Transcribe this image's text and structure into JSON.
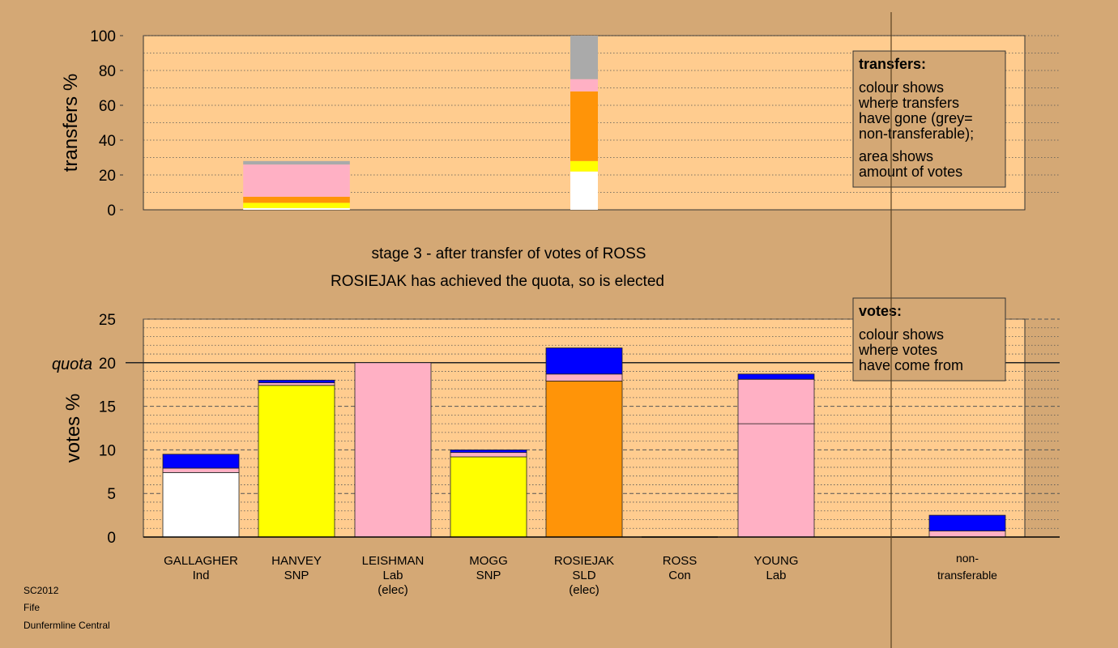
{
  "colors": {
    "background": "#D4A875",
    "plot_area": "#FFCC8F",
    "Ind": "#FFFFFF",
    "SNP": "#FFFF00",
    "Lab": "#FFB0C4",
    "SLD": "#FF9408",
    "Con": "#0000FF",
    "non_transferable": "#AAAAAA"
  },
  "footer": {
    "line1": "SC2012",
    "line2": "Fife",
    "line3": "Dunfermline Central"
  },
  "chart_data": [
    {
      "type": "bar",
      "role": "transfers",
      "ylabel": "transfers %",
      "ylim": [
        0,
        100
      ],
      "yticks": [
        0,
        20,
        40,
        60,
        80,
        100
      ],
      "categories": [
        "GALLAGHER",
        "HANVEY",
        "LEISHMAN",
        "MOGG",
        "ROSIEJAK",
        "ROSS",
        "YOUNG",
        "non-transferable"
      ],
      "bars": [
        {
          "category": "HANVEY",
          "segments": [
            {
              "party": "Ind",
              "value": 1
            },
            {
              "party": "SNP",
              "value": 3
            },
            {
              "party": "SLD",
              "value": 3.5
            },
            {
              "party": "Lab",
              "value": 18.5
            },
            {
              "party": "non_transferable",
              "value": 2
            }
          ]
        },
        {
          "category": "ROSIEJAK",
          "segments": [
            {
              "party": "Ind",
              "value": 22
            },
            {
              "party": "SNP",
              "value": 6
            },
            {
              "party": "SLD",
              "value": 40
            },
            {
              "party": "Lab",
              "value": 7
            },
            {
              "party": "non_transferable",
              "value": 25
            }
          ]
        }
      ],
      "legend": {
        "title": "transfers:",
        "line1": "colour shows",
        "line2": "where transfers",
        "line3": "have gone (grey=",
        "line4": "non-transferable);",
        "line5": "area shows",
        "line6": "amount of votes"
      }
    },
    {
      "type": "bar",
      "role": "votes",
      "title": "stage 3 - after transfer of votes of ROSS",
      "subtitle": "ROSIEJAK has achieved the quota, so is elected",
      "ylabel": "votes %",
      "ylim": [
        0,
        25
      ],
      "yticks": [
        0,
        5,
        10,
        15,
        20,
        25
      ],
      "quota": 20,
      "quota_label": "quota",
      "candidates": [
        {
          "name": "GALLAGHER",
          "party": "Ind",
          "status": "",
          "segments": [
            {
              "party": "Ind",
              "value": 7.4
            },
            {
              "party": "Lab",
              "value": 0.5
            },
            {
              "party": "Con",
              "value": 1.6
            }
          ]
        },
        {
          "name": "HANVEY",
          "party": "SNP",
          "status": "",
          "segments": [
            {
              "party": "SNP",
              "value": 17.4
            },
            {
              "party": "Lab",
              "value": 0.3
            },
            {
              "party": "Con",
              "value": 0.3
            }
          ]
        },
        {
          "name": "LEISHMAN",
          "party": "Lab",
          "status": "(elec)",
          "segments": [
            {
              "party": "Lab",
              "value": 20
            }
          ]
        },
        {
          "name": "MOGG",
          "party": "SNP",
          "status": "",
          "segments": [
            {
              "party": "SNP",
              "value": 9.2
            },
            {
              "party": "Lab",
              "value": 0.5
            },
            {
              "party": "Con",
              "value": 0.3
            }
          ]
        },
        {
          "name": "ROSIEJAK",
          "party": "SLD",
          "status": "(elec)",
          "segments": [
            {
              "party": "SLD",
              "value": 17.9
            },
            {
              "party": "Lab",
              "value": 0.8
            },
            {
              "party": "Con",
              "value": 3
            }
          ]
        },
        {
          "name": "ROSS",
          "party": "Con",
          "status": "",
          "segments": []
        },
        {
          "name": "YOUNG",
          "party": "Lab",
          "status": "",
          "segments": [
            {
              "party": "Lab",
              "value": 13
            },
            {
              "party": "Lab",
              "value": 5.1
            },
            {
              "party": "Con",
              "value": 0.6
            }
          ]
        }
      ],
      "non_transferable": {
        "line1": "non-",
        "line2": "transferable",
        "segments": [
          {
            "party": "Lab",
            "value": 0.7
          },
          {
            "party": "Con",
            "value": 1.8
          }
        ]
      },
      "legend": {
        "title": "votes:",
        "line1": "colour shows",
        "line2": "where votes",
        "line3": "have come from"
      }
    }
  ]
}
